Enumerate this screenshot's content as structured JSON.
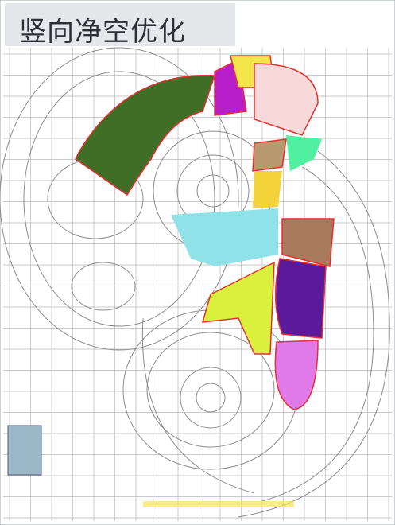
{
  "header": {
    "title": "竖向净空优化"
  }
}
